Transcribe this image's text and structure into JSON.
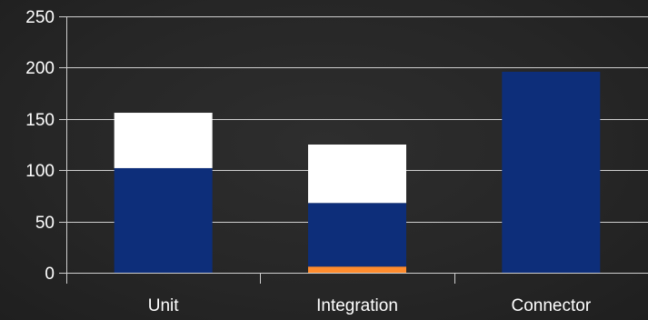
{
  "chart_data": {
    "type": "bar",
    "stacked": true,
    "title": "",
    "xlabel": "",
    "ylabel": "",
    "categories": [
      "Unit",
      "Integration",
      "Connector"
    ],
    "ylim": [
      0,
      250
    ],
    "yticks": [
      0,
      50,
      100,
      150,
      200,
      250
    ],
    "grid": true,
    "series": [
      {
        "color": "#ff8c2e",
        "values": [
          0,
          6,
          0
        ]
      },
      {
        "color": "#0d2e7a",
        "values": [
          102,
          62,
          196
        ]
      },
      {
        "color": "#ffffff",
        "values": [
          54,
          57,
          0
        ]
      }
    ]
  }
}
